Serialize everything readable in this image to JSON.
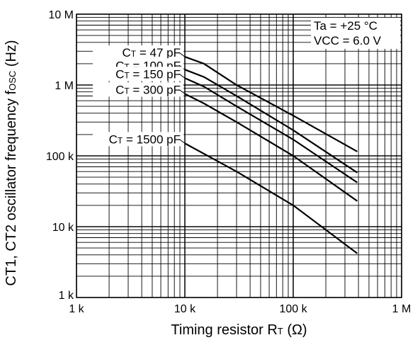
{
  "chart_data": {
    "type": "line",
    "x_scale": "log",
    "y_scale": "log",
    "xlim": [
      1000,
      1000000
    ],
    "ylim": [
      1000,
      10000000
    ],
    "grid": true,
    "xlabel": {
      "main": "Timing resistor R",
      "sub": "T",
      "unit": "(Ω)"
    },
    "ylabel": {
      "main": "CT1, CT2 oscillator frequency f",
      "sub": "OSC",
      "unit": "(Hz)"
    },
    "x_ticks": [
      {
        "value": 1000,
        "label": "1 k"
      },
      {
        "value": 10000,
        "label": "10 k"
      },
      {
        "value": 100000,
        "label": "100 k"
      },
      {
        "value": 1000000,
        "label": "1 M"
      }
    ],
    "y_ticks": [
      {
        "value": 1000,
        "label": "1 k"
      },
      {
        "value": 10000,
        "label": "10 k"
      },
      {
        "value": 100000,
        "label": "100 k"
      },
      {
        "value": 1000000,
        "label": "1 M"
      },
      {
        "value": 10000000,
        "label": "10 M"
      }
    ],
    "conditions": [
      "Ta = +25 °C",
      "VCC = 6.0 V"
    ],
    "series": [
      {
        "name": "CT = 47 pF",
        "label_prefix": "C",
        "label_sub": "T",
        "label_suffix": " = 47 pF",
        "x": [
          10000,
          15000,
          30000,
          100000,
          390000
        ],
        "y": [
          2500000,
          2000000,
          1000000,
          370000,
          115000
        ]
      },
      {
        "name": "CT = 100 pF",
        "label_prefix": "C",
        "label_sub": "T",
        "label_suffix": " = 100 pF",
        "x": [
          10000,
          15000,
          30000,
          100000,
          390000
        ],
        "y": [
          1650000,
          1300000,
          700000,
          230000,
          58000
        ]
      },
      {
        "name": "CT = 150 pF",
        "label_prefix": "C",
        "label_sub": "T",
        "label_suffix": " = 150 pF",
        "x": [
          10000,
          15000,
          30000,
          100000,
          390000
        ],
        "y": [
          1250000,
          950000,
          500000,
          170000,
          42000
        ]
      },
      {
        "name": "CT = 300 pF",
        "label_prefix": "C",
        "label_sub": "T",
        "label_suffix": " = 300 pF",
        "x": [
          10000,
          15000,
          30000,
          100000,
          390000
        ],
        "y": [
          750000,
          550000,
          300000,
          100000,
          23000
        ]
      },
      {
        "name": "CT = 1500 pF",
        "label_prefix": "C",
        "label_sub": "T",
        "label_suffix": " = 1500 pF",
        "x": [
          10000,
          30000,
          100000,
          390000
        ],
        "y": [
          150000,
          60000,
          20000,
          4200
        ]
      }
    ]
  }
}
